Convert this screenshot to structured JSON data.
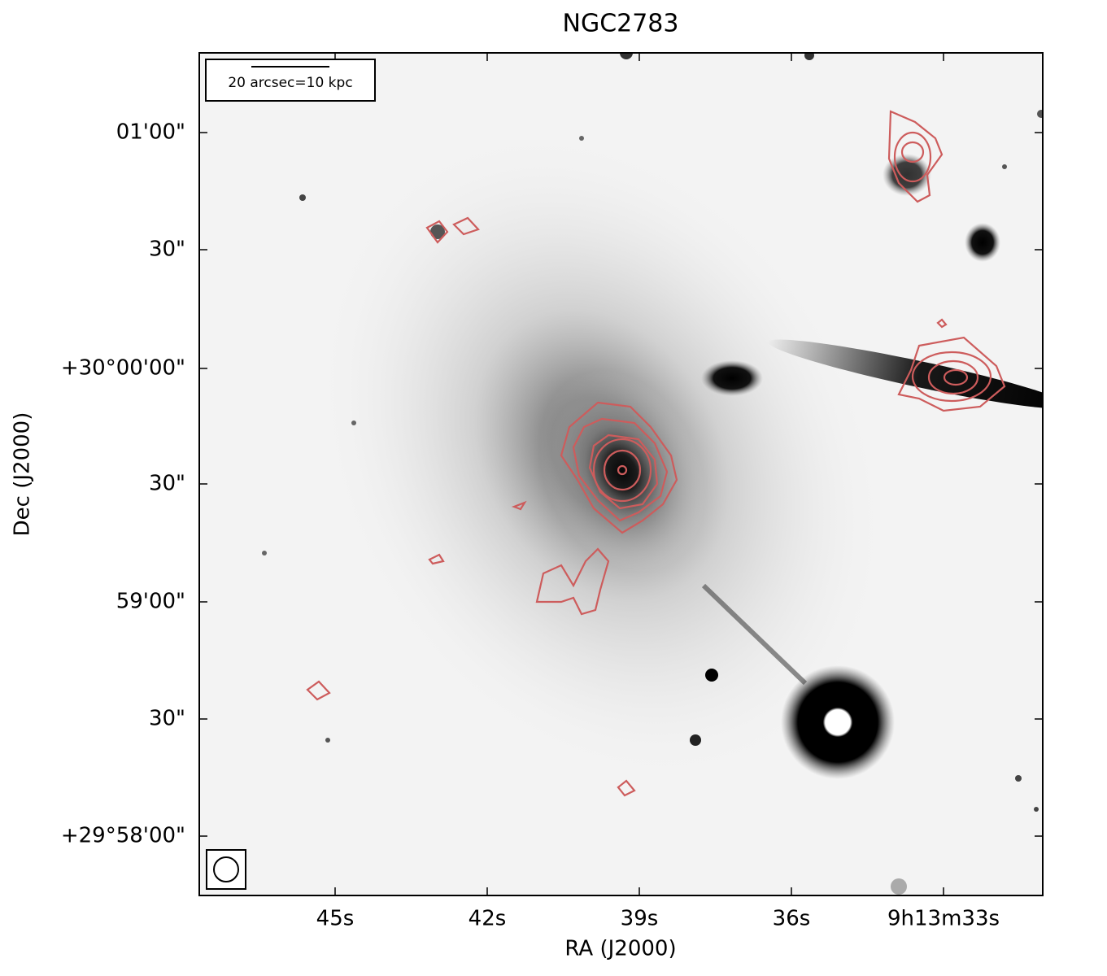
{
  "title": "NGC2783",
  "x_label": "RA (J2000)",
  "y_label": "Dec (J2000)",
  "x_tick_labels": [
    "45s",
    "42s",
    "39s",
    "36s",
    "9h13m33s"
  ],
  "y_tick_labels": [
    "01'00\"",
    "30\"",
    "+30°00'00\"",
    "30\"",
    "59'00\"",
    "30\"",
    "+29°58'00\""
  ],
  "scale_bar": "20 arcsec=10 kpc"
}
